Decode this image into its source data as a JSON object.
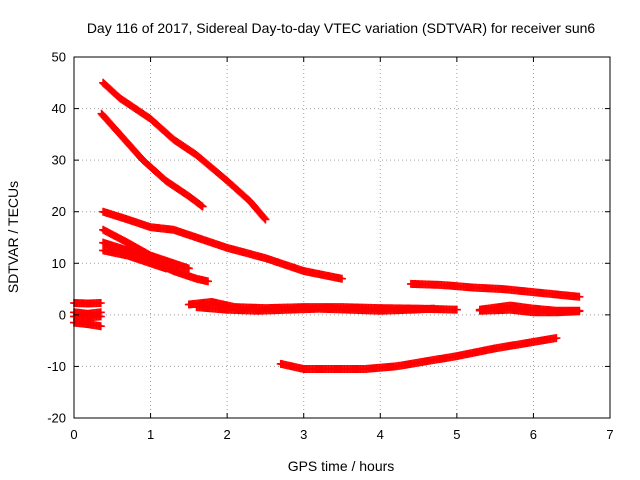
{
  "chart_data": {
    "type": "scatter",
    "title": "Day 116 of 2017, Sidereal Day-to-day VTEC variation (SDTVAR) for receiver sun6",
    "xlabel": "GPS time / hours",
    "ylabel": "SDTVAR / TECUs",
    "xlim": [
      0,
      7
    ],
    "ylim": [
      -20,
      50
    ],
    "x_ticks": [
      "0",
      "1",
      "2",
      "3",
      "4",
      "5",
      "6",
      "7"
    ],
    "y_ticks": [
      "-20",
      "-10",
      "0",
      "10",
      "20",
      "30",
      "40",
      "50"
    ],
    "grid": true,
    "marker_color": "#ff0000",
    "series": [
      {
        "x": [
          0.38,
          0.6,
          1.0,
          1.3,
          1.6,
          2.0,
          2.3,
          2.5
        ],
        "y": [
          45,
          42,
          38,
          34,
          31,
          26,
          22,
          18.5
        ]
      },
      {
        "x": [
          0.36,
          0.6,
          0.9,
          1.2,
          1.5,
          1.68
        ],
        "y": [
          39,
          35,
          30,
          26,
          23,
          21
        ]
      },
      {
        "x": [
          0.38,
          0.7,
          1.0,
          1.3,
          1.6,
          2.0,
          2.5,
          3.0,
          3.5
        ],
        "y": [
          20,
          18.5,
          17,
          16.5,
          15,
          13,
          11,
          8.5,
          7
        ]
      },
      {
        "x": [
          0.38,
          0.7,
          1.0,
          1.3,
          1.5
        ],
        "y": [
          16.5,
          14,
          11.5,
          10,
          9
        ]
      },
      {
        "x": [
          0.38,
          0.7,
          1.0,
          1.3,
          1.6,
          1.75
        ],
        "y": [
          14,
          12.5,
          10.5,
          8.5,
          7,
          6.5
        ]
      },
      {
        "x": [
          0.38,
          0.7,
          1.0,
          1.2
        ],
        "y": [
          12.5,
          11.5,
          10,
          9
        ]
      },
      {
        "x": [
          0.0,
          0.18,
          0.35
        ],
        "y": [
          2.3,
          2.2,
          2.3
        ]
      },
      {
        "x": [
          0.0,
          0.18,
          0.35
        ],
        "y": [
          0.5,
          0.2,
          0.5
        ]
      },
      {
        "x": [
          0.0,
          0.18,
          0.35
        ],
        "y": [
          -0.3,
          -0.5,
          -0.3
        ]
      },
      {
        "x": [
          0.0,
          0.18,
          0.35
        ],
        "y": [
          -1.5,
          -1.8,
          -2.2
        ]
      },
      {
        "x": [
          1.5,
          1.8,
          2.1,
          2.5,
          3.0,
          3.5,
          4.0,
          4.5,
          5.0
        ],
        "y": [
          2,
          2.5,
          1.5,
          1.3,
          1.5,
          1.5,
          1.3,
          1.2,
          1.0
        ]
      },
      {
        "x": [
          1.6,
          2.0,
          2.4,
          2.8,
          3.2,
          3.6,
          4.0,
          4.4,
          4.7
        ],
        "y": [
          1.5,
          1.0,
          0.8,
          1.0,
          1.2,
          1.0,
          0.8,
          1.0,
          1.2
        ]
      },
      {
        "x": [
          4.4,
          4.8,
          5.2,
          5.6,
          6.0,
          6.4,
          6.6
        ],
        "y": [
          6,
          5.8,
          5.3,
          5.0,
          4.4,
          3.8,
          3.5
        ]
      },
      {
        "x": [
          5.3,
          5.7,
          6.0,
          6.3,
          6.6
        ],
        "y": [
          1.0,
          1.8,
          1.2,
          0.8,
          0.8
        ]
      },
      {
        "x": [
          5.3,
          5.7,
          6.0,
          6.3,
          6.6
        ],
        "y": [
          0.8,
          1.0,
          0.5,
          0.5,
          0.7
        ]
      },
      {
        "x": [
          2.7,
          3.0,
          3.4,
          3.8,
          4.2,
          4.6,
          5.0,
          5.5,
          5.9,
          6.3
        ],
        "y": [
          -9.5,
          -10.5,
          -10.5,
          -10.5,
          -10,
          -9,
          -8,
          -6.5,
          -5.5,
          -4.5
        ]
      }
    ]
  }
}
